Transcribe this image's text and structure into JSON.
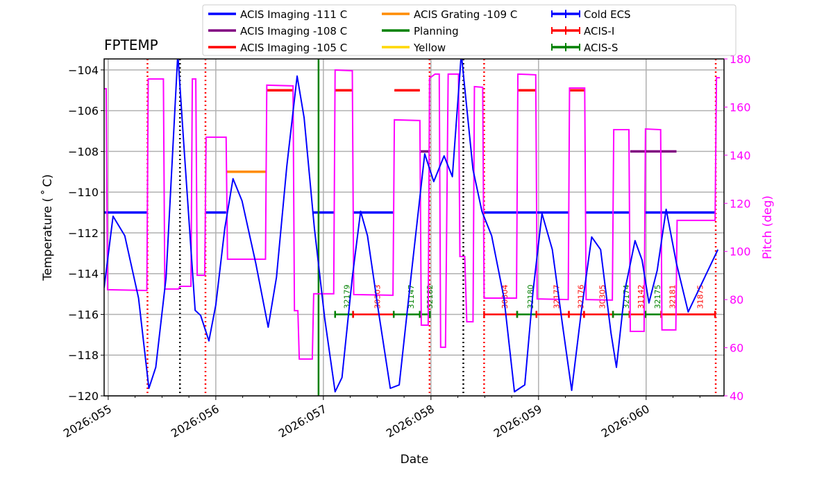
{
  "chart_data": {
    "type": "line",
    "title": "FPTEMP",
    "xlabel": "Date",
    "ylabel": "Temperature ($^\\circ$C)",
    "ylabel_display": "Temperature ( ˚ C)",
    "y2label": "Pitch (deg)",
    "xlim": [
      54.962,
      60.724
    ],
    "ylim": [
      -120,
      -103.46
    ],
    "y2lim": [
      40,
      180
    ],
    "xticks": [
      55,
      56,
      57,
      58,
      59,
      60
    ],
    "xticklabels": [
      "2026:055",
      "2026:056",
      "2026:057",
      "2026:058",
      "2026:059",
      "2026:060"
    ],
    "yticks": [
      -120,
      -118,
      -116,
      -114,
      -112,
      -110,
      -108,
      -106,
      -104
    ],
    "y2ticks": [
      40,
      60,
      80,
      100,
      120,
      140,
      160,
      180
    ],
    "grid": true,
    "legend_position": "top",
    "colors": {
      "temp": "#0000ff",
      "pitch": "#ff00ff",
      "grid": "#b0b0b0"
    },
    "legend": [
      {
        "label": "ACIS Imaging -111 C",
        "color": "#0000ff",
        "kind": "line"
      },
      {
        "label": "ACIS Imaging -108 C",
        "color": "#800080",
        "kind": "line"
      },
      {
        "label": "ACIS Imaging -105 C",
        "color": "#ff0000",
        "kind": "line"
      },
      {
        "label": "ACIS Grating -109 C",
        "color": "#ff8c00",
        "kind": "line"
      },
      {
        "label": "Planning",
        "color": "#008000",
        "kind": "line"
      },
      {
        "label": "Yellow",
        "color": "#ffd700",
        "kind": "line"
      },
      {
        "label": "Cold ECS",
        "color": "#0000ff",
        "kind": "err"
      },
      {
        "label": "ACIS-I",
        "color": "#ff0000",
        "kind": "err"
      },
      {
        "label": "ACIS-S",
        "color": "#008000",
        "kind": "err"
      }
    ],
    "temperature": [
      [
        54.962,
        -114.69
      ],
      [
        55.045,
        -111.18
      ],
      [
        55.154,
        -112.14
      ],
      [
        55.282,
        -115.2
      ],
      [
        55.378,
        -119.63
      ],
      [
        55.442,
        -118.6
      ],
      [
        55.538,
        -114.18
      ],
      [
        55.647,
        -103.2
      ],
      [
        55.699,
        -107.37
      ],
      [
        55.808,
        -115.8
      ],
      [
        55.859,
        -116.05
      ],
      [
        55.936,
        -117.3
      ],
      [
        56.0,
        -115.54
      ],
      [
        56.083,
        -111.8
      ],
      [
        56.16,
        -109.34
      ],
      [
        56.244,
        -110.43
      ],
      [
        56.372,
        -113.5
      ],
      [
        56.487,
        -116.63
      ],
      [
        56.564,
        -114.18
      ],
      [
        56.66,
        -108.73
      ],
      [
        56.756,
        -104.3
      ],
      [
        56.821,
        -106.35
      ],
      [
        56.917,
        -111.8
      ],
      [
        57.013,
        -116.22
      ],
      [
        57.109,
        -119.8
      ],
      [
        57.173,
        -119.1
      ],
      [
        57.269,
        -114.18
      ],
      [
        57.346,
        -110.94
      ],
      [
        57.41,
        -112.14
      ],
      [
        57.513,
        -115.88
      ],
      [
        57.622,
        -119.63
      ],
      [
        57.705,
        -119.46
      ],
      [
        57.814,
        -114.18
      ],
      [
        57.942,
        -108.12
      ],
      [
        58.026,
        -109.48
      ],
      [
        58.122,
        -108.22
      ],
      [
        58.199,
        -109.24
      ],
      [
        58.282,
        -103.2
      ],
      [
        58.391,
        -108.9
      ],
      [
        58.474,
        -110.95
      ],
      [
        58.564,
        -112.14
      ],
      [
        58.679,
        -115.2
      ],
      [
        58.776,
        -119.8
      ],
      [
        58.872,
        -119.46
      ],
      [
        58.949,
        -114.86
      ],
      [
        59.032,
        -111.05
      ],
      [
        59.128,
        -112.82
      ],
      [
        59.224,
        -116.56
      ],
      [
        59.308,
        -119.73
      ],
      [
        59.397,
        -115.88
      ],
      [
        59.494,
        -112.2
      ],
      [
        59.577,
        -112.82
      ],
      [
        59.673,
        -116.9
      ],
      [
        59.724,
        -118.6
      ],
      [
        59.801,
        -114.86
      ],
      [
        59.897,
        -112.38
      ],
      [
        59.962,
        -113.33
      ],
      [
        60.026,
        -115.44
      ],
      [
        60.103,
        -113.84
      ],
      [
        60.186,
        -110.84
      ],
      [
        60.282,
        -113.5
      ],
      [
        60.391,
        -115.88
      ],
      [
        60.667,
        -112.82
      ]
    ],
    "pitch": [
      [
        54.962,
        167.6
      ],
      [
        54.981,
        167.6
      ],
      [
        54.994,
        84.1
      ],
      [
        55.359,
        83.8
      ],
      [
        55.372,
        171.7
      ],
      [
        55.513,
        171.7
      ],
      [
        55.526,
        84.4
      ],
      [
        55.654,
        84.4
      ],
      [
        55.667,
        85.5
      ],
      [
        55.769,
        85.5
      ],
      [
        55.782,
        171.7
      ],
      [
        55.814,
        171.7
      ],
      [
        55.827,
        90.1
      ],
      [
        55.897,
        90.1
      ],
      [
        55.91,
        147.5
      ],
      [
        56.096,
        147.5
      ],
      [
        56.109,
        96.8
      ],
      [
        56.462,
        96.8
      ],
      [
        56.474,
        169.1
      ],
      [
        56.718,
        168.8
      ],
      [
        56.731,
        75.4
      ],
      [
        56.763,
        75.4
      ],
      [
        56.776,
        55.3
      ],
      [
        56.897,
        55.3
      ],
      [
        56.91,
        82.4
      ],
      [
        57.096,
        82.4
      ],
      [
        57.109,
        175.4
      ],
      [
        57.269,
        175.1
      ],
      [
        57.282,
        82.1
      ],
      [
        57.647,
        81.8
      ],
      [
        57.66,
        154.7
      ],
      [
        57.897,
        154.4
      ],
      [
        57.91,
        69.4
      ],
      [
        57.974,
        69.4
      ],
      [
        57.987,
        172.0
      ],
      [
        58.038,
        173.7
      ],
      [
        58.077,
        173.7
      ],
      [
        58.09,
        60.2
      ],
      [
        58.135,
        60.2
      ],
      [
        58.16,
        173.7
      ],
      [
        58.256,
        173.7
      ],
      [
        58.269,
        97.9
      ],
      [
        58.314,
        97.9
      ],
      [
        58.333,
        70.8
      ],
      [
        58.391,
        70.8
      ],
      [
        58.404,
        168.5
      ],
      [
        58.481,
        168.2
      ],
      [
        58.494,
        80.6
      ],
      [
        58.795,
        80.6
      ],
      [
        58.808,
        173.7
      ],
      [
        58.974,
        173.4
      ],
      [
        58.987,
        80.3
      ],
      [
        59.276,
        80.0
      ],
      [
        59.288,
        167.9
      ],
      [
        59.429,
        167.9
      ],
      [
        59.442,
        80.0
      ],
      [
        59.686,
        79.8
      ],
      [
        59.699,
        150.6
      ],
      [
        59.84,
        150.6
      ],
      [
        59.853,
        66.8
      ],
      [
        59.981,
        66.8
      ],
      [
        59.994,
        150.9
      ],
      [
        60.135,
        150.6
      ],
      [
        60.147,
        67.4
      ],
      [
        60.276,
        67.4
      ],
      [
        60.288,
        112.9
      ],
      [
        60.641,
        112.9
      ],
      [
        60.654,
        172.2
      ],
      [
        60.686,
        172.2
      ]
    ],
    "limit_segments": [
      {
        "value": -111,
        "color": "#0000ff",
        "ranges": [
          [
            54.962,
            55.359
          ],
          [
            55.904,
            56.096
          ],
          [
            56.897,
            57.096
          ],
          [
            57.282,
            57.647
          ],
          [
            58.494,
            59.276
          ],
          [
            59.442,
            59.84
          ],
          [
            59.994,
            60.641
          ]
        ]
      },
      {
        "value": -109,
        "color": "#ff8c00",
        "ranges": [
          [
            56.096,
            56.468
          ]
        ]
      },
      {
        "value": -105,
        "color": "#ff0000",
        "ranges": [
          [
            56.474,
            56.718
          ],
          [
            57.109,
            57.269
          ],
          [
            57.66,
            57.897
          ],
          [
            58.808,
            58.974
          ],
          [
            59.288,
            59.429
          ]
        ]
      },
      {
        "value": -108,
        "color": "#800080",
        "ranges": [
          [
            57.897,
            57.987
          ],
          [
            59.853,
            60.282
          ]
        ]
      }
    ],
    "vlines": [
      {
        "x": 55.365,
        "color": "#ff0000",
        "style": "dotted"
      },
      {
        "x": 55.904,
        "color": "#ff0000",
        "style": "dotted"
      },
      {
        "x": 57.987,
        "color": "#ff0000",
        "style": "dotted"
      },
      {
        "x": 58.494,
        "color": "#ff0000",
        "style": "dotted"
      },
      {
        "x": 60.647,
        "color": "#ff0000",
        "style": "dotted"
      },
      {
        "x": 55.667,
        "color": "#000000",
        "style": "dotted"
      },
      {
        "x": 58.301,
        "color": "#000000",
        "style": "dotted"
      },
      {
        "x": 56.955,
        "color": "#008000",
        "style": "solid"
      }
    ],
    "obsids": [
      {
        "id": "32179",
        "instrument": "ACIS-S",
        "start": 57.109,
        "stop": 57.276,
        "label_x": 57.218
      },
      {
        "id": "30303",
        "instrument": "ACIS-I",
        "start": 57.276,
        "stop": 57.654,
        "label_x": 57.5
      },
      {
        "id": "31147",
        "instrument": "ACIS-S",
        "start": 57.654,
        "stop": 57.897,
        "label_x": 57.814
      },
      {
        "id": "32182",
        "instrument": "ACIS-S",
        "start": 57.897,
        "stop": 57.99,
        "label_x": 57.987
      },
      {
        "id": "30304",
        "instrument": "ACIS-I",
        "start": 58.494,
        "stop": 58.801,
        "label_x": 58.686
      },
      {
        "id": "32180",
        "instrument": "ACIS-S",
        "start": 58.801,
        "stop": 58.98,
        "label_x": 58.923
      },
      {
        "id": "32177",
        "instrument": "ACIS-I",
        "start": 58.98,
        "stop": 59.282,
        "label_x": 59.167
      },
      {
        "id": "32176",
        "instrument": "ACIS-I",
        "start": 59.282,
        "stop": 59.423,
        "label_x": 59.391
      },
      {
        "id": "30305",
        "instrument": "ACIS-I",
        "start": 59.423,
        "stop": 59.692,
        "label_x": 59.59
      },
      {
        "id": "32174",
        "instrument": "ACIS-S",
        "start": 59.692,
        "stop": 59.846,
        "label_x": 59.814
      },
      {
        "id": "31142",
        "instrument": "ACIS-I",
        "start": 59.846,
        "stop": 59.994,
        "label_x": 59.949
      },
      {
        "id": "32175",
        "instrument": "ACIS-S",
        "start": 59.994,
        "stop": 60.141,
        "label_x": 60.103
      },
      {
        "id": "32181",
        "instrument": "ACIS-I",
        "start": 60.141,
        "stop": 60.641,
        "label_x": 60.244
      },
      {
        "id": "31875",
        "instrument": "ACIS-I",
        "start": 60.141,
        "stop": 60.641,
        "label_x": 60.5
      }
    ],
    "obsid_bar_temp": -116
  }
}
